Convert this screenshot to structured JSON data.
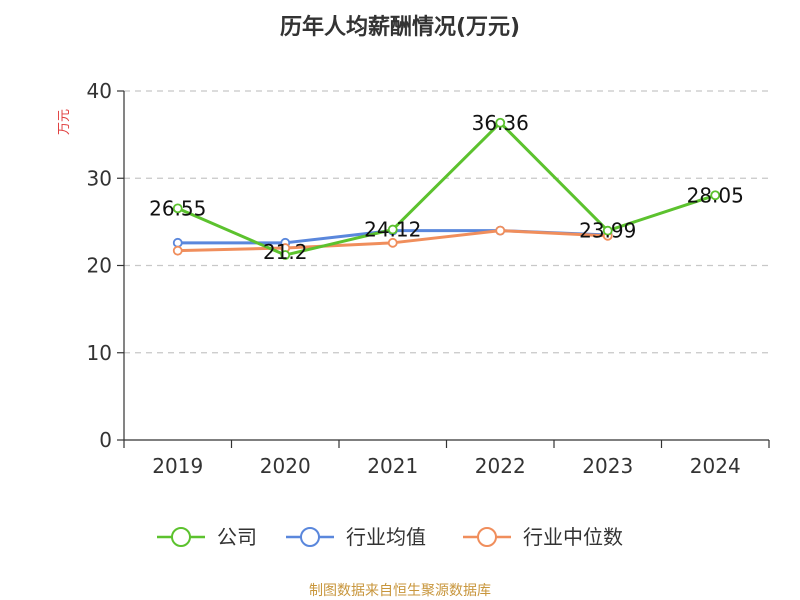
{
  "chart_data": {
    "type": "line",
    "title": "历年人均薪酬情况(万元)",
    "ylabel": "万元",
    "xlabel": "",
    "ylim": [
      0,
      40
    ],
    "yticks": [
      0,
      10,
      20,
      30,
      40
    ],
    "categories": [
      "2019",
      "2020",
      "2021",
      "2022",
      "2023",
      "2024"
    ],
    "grid": true,
    "legend_position": "bottom",
    "series": [
      {
        "name": "公司",
        "color": "#5cc22e",
        "values": [
          26.55,
          21.2,
          24.12,
          36.36,
          23.99,
          28.05
        ],
        "labels": [
          "26.55",
          "21.2",
          "24.12",
          "36.36",
          "23.99",
          "28.05"
        ]
      },
      {
        "name": "行业均值",
        "color": "#5a87dc",
        "values": [
          22.6,
          22.6,
          24.0,
          24.0,
          23.5,
          null
        ]
      },
      {
        "name": "行业中位数",
        "color": "#f08e5c",
        "values": [
          21.7,
          22.0,
          22.6,
          24.0,
          23.4,
          null
        ]
      }
    ],
    "source": "制图数据来自恒生聚源数据库",
    "source_color": "#c8963c",
    "ylabel_color": "#e03c3c"
  }
}
